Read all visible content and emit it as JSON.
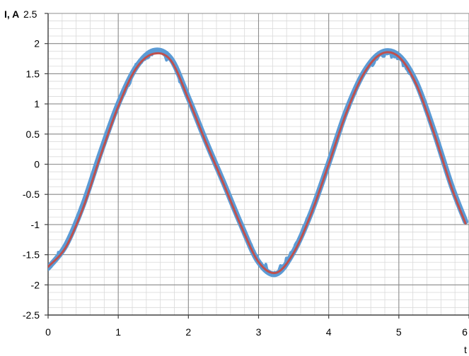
{
  "chart_data": {
    "type": "line",
    "title": "",
    "ylabel": "I, A",
    "xlabel": "t",
    "xlim": [
      0,
      6
    ],
    "ylim": [
      -2.5,
      2.5
    ],
    "x_ticks": [
      0,
      1,
      2,
      3,
      4,
      5,
      6
    ],
    "x_tick_labels": [
      "0",
      "1",
      "2",
      "3",
      "4",
      "5",
      "6"
    ],
    "y_ticks": [
      2.5,
      2,
      1.5,
      1,
      0.5,
      0,
      -0.5,
      -1,
      -1.5,
      -2,
      -2.5
    ],
    "y_tick_labels": [
      "2.5",
      "2",
      "1.5",
      "1",
      "0.5",
      "0",
      "-0.5",
      "-1",
      "-1.5",
      "-2",
      "-2.5"
    ],
    "grid": true,
    "minor_grid": true,
    "series": [
      {
        "color": "#5b9bd5",
        "style": "noisy measured",
        "x": [
          0,
          0.25,
          0.5,
          0.75,
          1.0,
          1.25,
          1.5,
          1.75,
          2.0,
          2.25,
          2.5,
          2.75,
          3.0,
          3.25,
          3.5,
          3.75,
          4.0,
          4.25,
          4.5,
          4.75,
          5.0,
          5.25,
          5.5,
          5.75,
          5.95
        ],
        "y": [
          -1.72,
          -1.35,
          -0.67,
          0.2,
          1.0,
          1.6,
          1.88,
          1.75,
          1.1,
          0.38,
          -0.3,
          -1.0,
          -1.62,
          -1.82,
          -1.45,
          -0.8,
          0.02,
          0.88,
          1.52,
          1.85,
          1.8,
          1.35,
          0.55,
          -0.35,
          -0.95
        ]
      },
      {
        "color": "#c0504d",
        "style": "smooth fit",
        "x": [
          0,
          0.25,
          0.5,
          0.75,
          1.0,
          1.25,
          1.5,
          1.75,
          2.0,
          2.25,
          2.5,
          2.75,
          3.0,
          3.25,
          3.5,
          3.75,
          4.0,
          4.25,
          4.5,
          4.75,
          5.0,
          5.25,
          5.5,
          5.75,
          5.95
        ],
        "y": [
          -1.7,
          -1.38,
          -0.72,
          0.15,
          0.96,
          1.58,
          1.83,
          1.72,
          1.08,
          0.36,
          -0.32,
          -1.02,
          -1.62,
          -1.8,
          -1.47,
          -0.82,
          0.0,
          0.85,
          1.5,
          1.83,
          1.78,
          1.32,
          0.52,
          -0.38,
          -0.98
        ]
      }
    ]
  }
}
